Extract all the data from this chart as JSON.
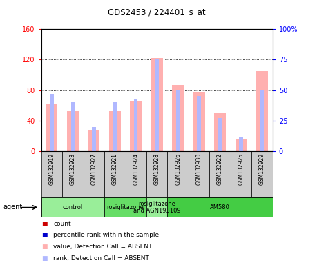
{
  "title": "GDS2453 / 224401_s_at",
  "samples": [
    "GSM132919",
    "GSM132923",
    "GSM132927",
    "GSM132921",
    "GSM132924",
    "GSM132928",
    "GSM132926",
    "GSM132930",
    "GSM132922",
    "GSM132925",
    "GSM132929"
  ],
  "value_absent": [
    62,
    52,
    28,
    52,
    65,
    122,
    87,
    77,
    50,
    15,
    105
  ],
  "rank_absent": [
    47,
    40,
    20,
    40,
    43,
    75,
    50,
    45,
    27,
    12,
    50
  ],
  "ylim_left": [
    0,
    160
  ],
  "ylim_right": [
    0,
    100
  ],
  "yticks_left": [
    0,
    40,
    80,
    120,
    160
  ],
  "yticks_right": [
    0,
    25,
    50,
    75,
    100
  ],
  "yticklabels_left": [
    "0",
    "40",
    "80",
    "120",
    "160"
  ],
  "yticklabels_right": [
    "0",
    "25",
    "50",
    "75",
    "100%"
  ],
  "groups": [
    {
      "label": "control",
      "start": 0,
      "end": 3,
      "color": "#99ee99"
    },
    {
      "label": "rosiglitazone",
      "start": 3,
      "end": 5,
      "color": "#66dd66"
    },
    {
      "label": "rosiglitazone\nand AGN193109",
      "start": 5,
      "end": 6,
      "color": "#99ee99"
    },
    {
      "label": "AM580",
      "start": 6,
      "end": 11,
      "color": "#44cc44"
    }
  ],
  "bar_color_absent_val": "#ffb0b0",
  "bar_color_absent_rank": "#b0b8ff",
  "legend_count_color": "#cc0000",
  "legend_rank_color": "#0000cc",
  "legend_val_absent_color": "#ffb0b0",
  "legend_rank_absent_color": "#b0b8ff",
  "sample_box_color": "#cccccc",
  "agent_label": "agent"
}
